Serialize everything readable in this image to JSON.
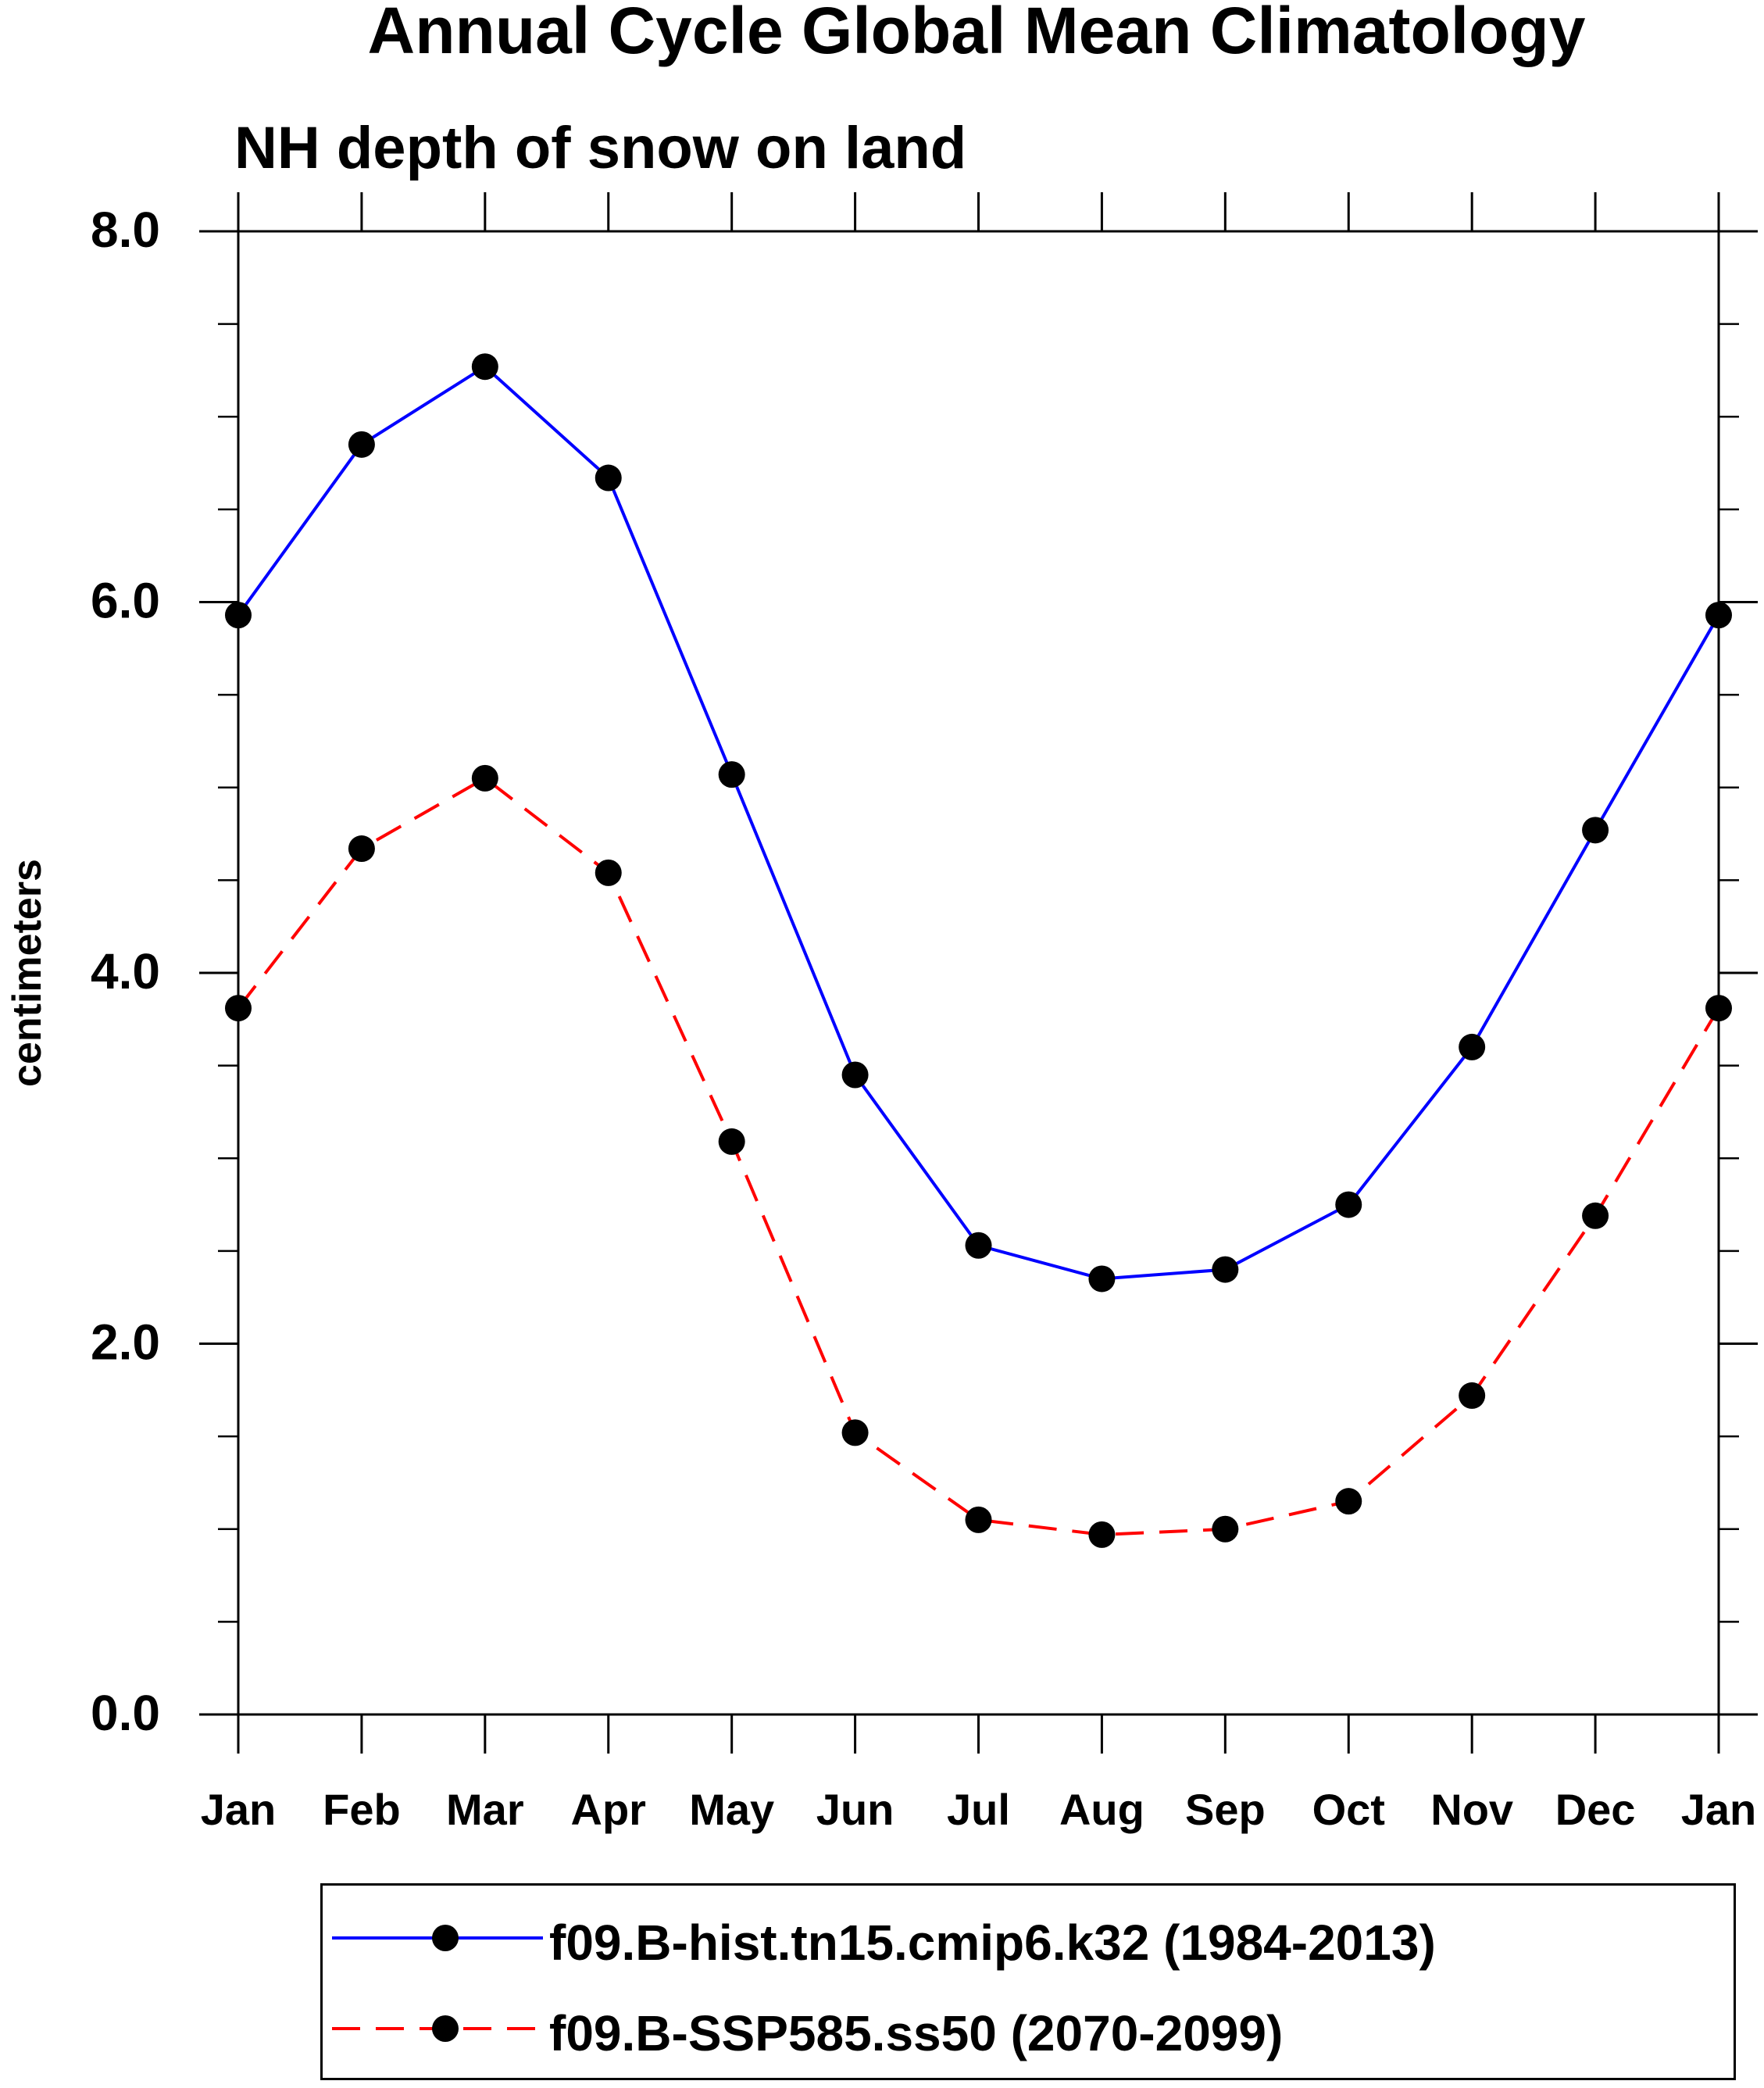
{
  "chart_data": {
    "type": "line",
    "title": "Annual Cycle Global Mean Climatology",
    "subtitle": "NH depth of snow on land",
    "xlabel": "",
    "ylabel": "centimeters",
    "categories": [
      "Jan",
      "Feb",
      "Mar",
      "Apr",
      "May",
      "Jun",
      "Jul",
      "Aug",
      "Sep",
      "Oct",
      "Nov",
      "Dec",
      "Jan"
    ],
    "ylim": [
      0,
      8
    ],
    "yticks": [
      "0.0",
      "2.0",
      "4.0",
      "6.0",
      "8.0"
    ],
    "grid": false,
    "legend_position": "bottom",
    "series": [
      {
        "name": "f09.B-hist.tn15.cmip6.k32 (1984-2013)",
        "color": "#0000ff",
        "line_style": "solid",
        "marker": "filled-circle",
        "values": [
          5.93,
          6.85,
          7.27,
          6.67,
          5.07,
          3.45,
          2.53,
          2.35,
          2.4,
          2.75,
          3.6,
          4.77,
          5.93
        ]
      },
      {
        "name": "f09.B-SSP585.ss50 (2070-2099)",
        "color": "#ff0000",
        "line_style": "dashed",
        "marker": "filled-circle",
        "values": [
          3.81,
          4.67,
          5.05,
          4.54,
          3.09,
          1.52,
          1.05,
          0.97,
          1.0,
          1.15,
          1.72,
          2.69,
          3.81
        ]
      }
    ]
  }
}
